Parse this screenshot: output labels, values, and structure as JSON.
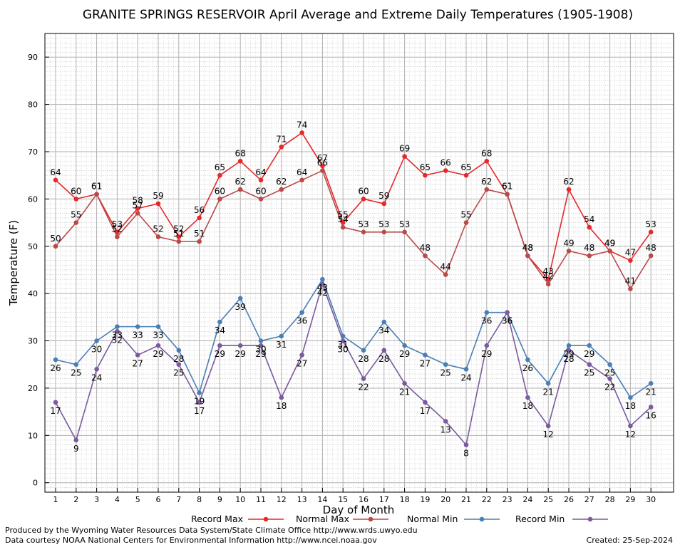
{
  "chart_data": {
    "type": "line",
    "title": "GRANITE SPRINGS RESERVOIR April Average and Extreme Daily Temperatures (1905-1908)",
    "xlabel": "Day of Month",
    "ylabel": "Temperature (F)",
    "ylim": [
      -2,
      95
    ],
    "yticks": [
      0,
      10,
      20,
      30,
      40,
      50,
      60,
      70,
      80,
      90
    ],
    "x": [
      1,
      2,
      3,
      4,
      5,
      6,
      7,
      8,
      9,
      10,
      11,
      12,
      13,
      14,
      15,
      16,
      17,
      18,
      19,
      20,
      21,
      22,
      23,
      24,
      25,
      26,
      27,
      28,
      29,
      30
    ],
    "grid": true,
    "legend_position": "bottom",
    "series": [
      {
        "name": "Record Max",
        "color": "#e8272a",
        "values": [
          64,
          60,
          61,
          53,
          58,
          59,
          52,
          56,
          65,
          68,
          64,
          71,
          74,
          67,
          55,
          60,
          59,
          69,
          65,
          66,
          65,
          68,
          61,
          48,
          43,
          62,
          54,
          49,
          47,
          53
        ]
      },
      {
        "name": "Normal Max",
        "color": "#b84a4a",
        "values": [
          50,
          55,
          61,
          52,
          57,
          52,
          51,
          51,
          60,
          62,
          60,
          62,
          64,
          66,
          54,
          53,
          53,
          53,
          48,
          44,
          55,
          62,
          61,
          48,
          42,
          49,
          48,
          49,
          41,
          48
        ]
      },
      {
        "name": "Normal Min",
        "color": "#4a7fb5",
        "values": [
          26,
          25,
          30,
          33,
          33,
          33,
          28,
          19,
          34,
          39,
          30,
          31,
          36,
          43,
          31,
          28,
          34,
          29,
          27,
          25,
          24,
          36,
          36,
          26,
          21,
          29,
          29,
          25,
          18,
          21
        ]
      },
      {
        "name": "Record Min",
        "color": "#7b5a9e",
        "values": [
          17,
          9,
          24,
          32,
          27,
          29,
          25,
          17,
          29,
          29,
          29,
          18,
          27,
          42,
          30,
          22,
          28,
          21,
          17,
          13,
          8,
          29,
          36,
          18,
          12,
          28,
          25,
          22,
          12,
          16
        ]
      }
    ]
  },
  "footer": {
    "produced_by": "Produced by the Wyoming Water Resources Data System/State Climate Office http://www.wrds.uwyo.edu",
    "data_courtesy": "Data courtesy NOAA National Centers for Environmental Information http://www.ncei.noaa.gov",
    "created": "Created:  25-Sep-2024"
  }
}
